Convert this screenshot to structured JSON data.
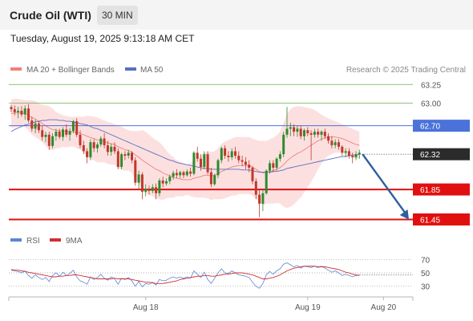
{
  "header": {
    "title": "Crude Oil (WTI)",
    "timeframe": "30 MIN"
  },
  "datetime": "Tuesday, August 19, 2025 9:13:18 AM CET",
  "legend": {
    "bb_label": "MA 20 + Bollinger Bands",
    "ma50_label": "MA 50",
    "credit": "Research © 2025 Trading Central",
    "rsi_label": "RSI",
    "rsi_ma_label": "9MA"
  },
  "colors": {
    "up": "#2e8b2e",
    "down": "#c0392b",
    "bb_fill": "#fbd6d6",
    "ma20": "#f08080",
    "ma50": "#5b6fbf",
    "green_level": "#6ab04c",
    "blue_level": "#4a72d9",
    "red_level": "#e01010",
    "current": "#2b2b2b",
    "arrow": "#2f5e9e",
    "rsi": "#5b86d6",
    "rsi_ma": "#d03030"
  },
  "chart_data": {
    "type": "candlestick",
    "instrument": "Crude Oil (WTI)",
    "timeframe": "30 MIN",
    "ylim": [
      61.38,
      63.36
    ],
    "x_labels": [
      {
        "label": "Aug 18",
        "index": 39
      },
      {
        "label": "Aug 19",
        "index": 86
      },
      {
        "label": "Aug 20",
        "index": 108
      }
    ],
    "levels": [
      {
        "value": 63.25,
        "label": "63.25",
        "style": "green-line"
      },
      {
        "value": 63.0,
        "label": "63.00",
        "style": "green-line"
      },
      {
        "value": 62.7,
        "label": "62.70",
        "style": "blue-tag"
      },
      {
        "value": 62.32,
        "label": "62.32",
        "style": "current-tag"
      },
      {
        "value": 61.85,
        "label": "61.85",
        "style": "red-tag"
      },
      {
        "value": 61.45,
        "label": "61.45",
        "style": "red-tag"
      }
    ],
    "candles": [
      [
        62.95,
        62.98,
        62.88,
        62.92
      ],
      [
        62.92,
        62.97,
        62.84,
        62.88
      ],
      [
        62.88,
        62.95,
        62.8,
        62.9
      ],
      [
        62.9,
        62.96,
        62.82,
        62.85
      ],
      [
        62.85,
        62.97,
        62.78,
        62.93
      ],
      [
        62.93,
        62.99,
        62.74,
        62.77
      ],
      [
        62.77,
        62.82,
        62.62,
        62.66
      ],
      [
        62.66,
        62.78,
        62.6,
        62.73
      ],
      [
        62.73,
        62.76,
        62.6,
        62.64
      ],
      [
        62.64,
        62.7,
        62.5,
        62.55
      ],
      [
        62.55,
        62.62,
        62.48,
        62.58
      ],
      [
        62.58,
        62.62,
        62.38,
        62.43
      ],
      [
        62.43,
        62.6,
        62.4,
        62.56
      ],
      [
        62.56,
        62.66,
        62.5,
        62.62
      ],
      [
        62.62,
        62.66,
        62.52,
        62.55
      ],
      [
        62.55,
        62.68,
        62.5,
        62.65
      ],
      [
        62.65,
        62.72,
        62.55,
        62.58
      ],
      [
        62.58,
        62.67,
        62.5,
        62.63
      ],
      [
        62.63,
        62.78,
        62.6,
        62.76
      ],
      [
        62.76,
        62.8,
        62.55,
        62.58
      ],
      [
        62.58,
        62.64,
        62.4,
        62.44
      ],
      [
        62.44,
        62.5,
        62.32,
        62.36
      ],
      [
        62.36,
        62.4,
        62.2,
        62.28
      ],
      [
        62.28,
        62.52,
        62.24,
        62.48
      ],
      [
        62.48,
        62.52,
        62.35,
        62.4
      ],
      [
        62.4,
        62.48,
        62.34,
        62.45
      ],
      [
        62.45,
        62.56,
        62.42,
        62.53
      ],
      [
        62.53,
        62.6,
        62.4,
        62.44
      ],
      [
        62.44,
        62.5,
        62.3,
        62.35
      ],
      [
        62.35,
        62.46,
        62.3,
        62.42
      ],
      [
        62.42,
        62.48,
        62.32,
        62.36
      ],
      [
        62.36,
        62.4,
        62.12,
        62.15
      ],
      [
        62.15,
        62.34,
        62.12,
        62.32
      ],
      [
        62.32,
        62.36,
        62.24,
        62.3
      ],
      [
        62.3,
        62.38,
        62.26,
        62.34
      ],
      [
        62.34,
        62.36,
        62.2,
        62.24
      ],
      [
        62.24,
        62.28,
        61.9,
        61.94
      ],
      [
        61.94,
        62.1,
        61.86,
        62.05
      ],
      [
        62.05,
        62.08,
        61.72,
        61.82
      ],
      [
        61.82,
        61.92,
        61.76,
        61.86
      ],
      [
        61.86,
        61.9,
        61.78,
        61.83
      ],
      [
        61.83,
        61.92,
        61.8,
        61.88
      ],
      [
        61.88,
        61.93,
        61.72,
        61.8
      ],
      [
        61.8,
        62.0,
        61.76,
        61.97
      ],
      [
        61.97,
        62.02,
        61.88,
        61.93
      ],
      [
        61.93,
        62.0,
        61.9,
        61.96
      ],
      [
        61.96,
        62.05,
        61.92,
        62.02
      ],
      [
        62.02,
        62.1,
        61.98,
        62.07
      ],
      [
        62.07,
        62.12,
        62.0,
        62.04
      ],
      [
        62.04,
        62.1,
        62.0,
        62.08
      ],
      [
        62.08,
        62.1,
        62.0,
        62.04
      ],
      [
        62.04,
        62.12,
        62.02,
        62.09
      ],
      [
        62.09,
        62.14,
        62.02,
        62.06
      ],
      [
        62.06,
        62.36,
        62.04,
        62.34
      ],
      [
        62.34,
        62.42,
        62.22,
        62.26
      ],
      [
        62.26,
        62.32,
        62.1,
        62.15
      ],
      [
        62.15,
        62.36,
        62.12,
        62.32
      ],
      [
        62.32,
        62.36,
        62.05,
        62.08
      ],
      [
        62.08,
        62.14,
        61.88,
        61.92
      ],
      [
        61.92,
        62.06,
        61.9,
        62.04
      ],
      [
        62.04,
        62.26,
        62.0,
        62.24
      ],
      [
        62.24,
        62.42,
        62.2,
        62.4
      ],
      [
        62.4,
        62.44,
        62.26,
        62.3
      ],
      [
        62.3,
        62.36,
        62.22,
        62.28
      ],
      [
        62.28,
        62.4,
        62.24,
        62.36
      ],
      [
        62.36,
        62.42,
        62.26,
        62.3
      ],
      [
        62.3,
        62.36,
        62.2,
        62.24
      ],
      [
        62.24,
        62.3,
        62.16,
        62.22
      ],
      [
        62.22,
        62.28,
        62.12,
        62.18
      ],
      [
        62.18,
        62.24,
        62.08,
        62.14
      ],
      [
        62.14,
        62.16,
        61.92,
        61.96
      ],
      [
        61.96,
        62.0,
        61.72,
        61.78
      ],
      [
        61.78,
        61.86,
        61.48,
        61.66
      ],
      [
        61.66,
        61.84,
        61.56,
        61.8
      ],
      [
        61.8,
        62.12,
        61.78,
        62.1
      ],
      [
        62.1,
        62.24,
        62.06,
        62.2
      ],
      [
        62.2,
        62.24,
        62.08,
        62.14
      ],
      [
        62.14,
        62.28,
        62.1,
        62.26
      ],
      [
        62.26,
        62.36,
        62.22,
        62.32
      ],
      [
        62.32,
        62.62,
        62.28,
        62.58
      ],
      [
        62.58,
        62.95,
        62.54,
        62.66
      ],
      [
        62.66,
        62.74,
        62.56,
        62.68
      ],
      [
        62.68,
        62.72,
        62.56,
        62.62
      ],
      [
        62.62,
        62.7,
        62.55,
        62.66
      ],
      [
        62.66,
        62.7,
        62.52,
        62.56
      ],
      [
        62.56,
        62.66,
        62.5,
        62.64
      ],
      [
        62.64,
        62.68,
        62.56,
        62.6
      ],
      [
        62.6,
        62.64,
        62.24,
        62.58
      ],
      [
        62.58,
        62.66,
        62.54,
        62.62
      ],
      [
        62.62,
        62.66,
        62.54,
        62.58
      ],
      [
        62.58,
        62.64,
        62.5,
        62.62
      ],
      [
        62.62,
        62.66,
        62.52,
        62.56
      ],
      [
        62.56,
        62.6,
        62.46,
        62.5
      ],
      [
        62.5,
        62.56,
        62.4,
        62.44
      ],
      [
        62.44,
        62.52,
        62.4,
        62.48
      ],
      [
        62.48,
        62.52,
        62.38,
        62.42
      ],
      [
        62.42,
        62.44,
        62.3,
        62.34
      ],
      [
        62.34,
        62.4,
        62.28,
        62.36
      ],
      [
        62.36,
        62.4,
        62.26,
        62.3
      ],
      [
        62.3,
        62.34,
        62.2,
        62.28
      ],
      [
        62.28,
        62.36,
        62.24,
        62.32
      ],
      [
        62.32,
        62.38,
        62.26,
        62.34
      ]
    ],
    "ma20": [
      62.86,
      62.87,
      62.87,
      62.87,
      62.86,
      62.84,
      62.81,
      62.79,
      62.76,
      62.73,
      62.7,
      62.67,
      62.65,
      62.64,
      62.63,
      62.63,
      62.62,
      62.62,
      62.62,
      62.61,
      62.6,
      62.58,
      62.56,
      62.54,
      62.53,
      62.51,
      62.5,
      62.49,
      62.47,
      62.46,
      62.45,
      62.42,
      62.4,
      62.38,
      62.37,
      62.35,
      62.31,
      62.28,
      62.24,
      62.21,
      62.18,
      62.15,
      62.12,
      62.1,
      62.07,
      62.05,
      62.03,
      62.01,
      62.0,
      61.99,
      61.98,
      61.98,
      61.98,
      62.0,
      62.01,
      62.02,
      62.04,
      62.04,
      62.03,
      62.04,
      62.06,
      62.09,
      62.11,
      62.13,
      62.15,
      62.16,
      62.17,
      62.17,
      62.17,
      62.17,
      62.15,
      62.12,
      62.09,
      62.07,
      62.08,
      62.09,
      62.1,
      62.12,
      62.14,
      62.18,
      62.23,
      62.27,
      62.3,
      62.33,
      62.35,
      62.38,
      62.41,
      62.44,
      62.47,
      62.5,
      62.52,
      62.54,
      62.55,
      62.55,
      62.55,
      62.54,
      62.53,
      62.51,
      62.49,
      62.47,
      62.45,
      62.44
    ],
    "bb_upper": [
      63.05,
      63.06,
      63.06,
      63.05,
      63.04,
      63.04,
      63.04,
      63.03,
      63.0,
      62.98,
      62.97,
      62.96,
      62.93,
      62.88,
      62.86,
      62.84,
      62.83,
      62.82,
      62.82,
      62.82,
      62.82,
      62.82,
      62.83,
      62.83,
      62.82,
      62.81,
      62.79,
      62.77,
      62.75,
      62.74,
      62.72,
      62.7,
      62.69,
      62.66,
      62.64,
      62.63,
      62.63,
      62.63,
      62.64,
      62.62,
      62.58,
      62.54,
      62.51,
      62.48,
      62.43,
      62.37,
      62.32,
      62.28,
      62.24,
      62.22,
      62.2,
      62.18,
      62.2,
      62.25,
      62.28,
      62.3,
      62.34,
      62.35,
      62.35,
      62.36,
      62.4,
      62.46,
      62.49,
      62.51,
      62.53,
      62.55,
      62.55,
      62.55,
      62.55,
      62.55,
      62.53,
      62.51,
      62.5,
      62.5,
      62.5,
      62.52,
      62.54,
      62.57,
      62.62,
      62.74,
      62.86,
      62.92,
      62.95,
      62.96,
      62.96,
      62.95,
      62.94,
      62.93,
      62.91,
      62.88,
      62.85,
      62.82,
      62.8,
      62.78,
      62.76,
      62.74,
      62.72,
      62.7,
      62.68,
      62.66,
      62.64,
      62.62
    ],
    "bb_lower": [
      62.67,
      62.68,
      62.68,
      62.69,
      62.68,
      62.64,
      62.58,
      62.55,
      62.52,
      62.48,
      62.43,
      62.38,
      62.37,
      62.4,
      62.4,
      62.42,
      62.41,
      62.42,
      62.42,
      62.4,
      62.38,
      62.34,
      62.29,
      62.25,
      62.24,
      62.21,
      62.21,
      62.21,
      62.19,
      62.18,
      62.18,
      62.14,
      62.11,
      62.1,
      62.1,
      62.07,
      61.99,
      61.93,
      61.84,
      61.8,
      61.78,
      61.76,
      61.73,
      61.72,
      61.71,
      61.73,
      61.74,
      61.74,
      61.76,
      61.76,
      61.76,
      61.78,
      61.76,
      61.75,
      61.74,
      61.74,
      61.74,
      61.73,
      61.71,
      61.72,
      61.72,
      61.72,
      61.73,
      61.75,
      61.77,
      61.77,
      61.79,
      61.79,
      61.79,
      61.79,
      61.77,
      61.73,
      61.68,
      61.64,
      61.66,
      61.66,
      61.66,
      61.67,
      61.66,
      61.62,
      61.6,
      61.62,
      61.65,
      61.7,
      61.74,
      61.81,
      61.88,
      61.95,
      62.03,
      62.12,
      62.19,
      62.26,
      62.3,
      62.32,
      62.34,
      62.34,
      62.34,
      62.32,
      62.3,
      62.28,
      62.26,
      62.26
    ],
    "ma50": [
      62.62,
      62.65,
      62.67,
      62.69,
      62.71,
      62.72,
      62.74,
      62.75,
      62.76,
      62.77,
      62.77,
      62.78,
      62.78,
      62.78,
      62.77,
      62.77,
      62.76,
      62.76,
      62.75,
      62.74,
      62.73,
      62.72,
      62.71,
      62.69,
      62.67,
      62.66,
      62.64,
      62.62,
      62.6,
      62.58,
      62.56,
      62.54,
      62.52,
      62.5,
      62.48,
      62.46,
      62.44,
      62.42,
      62.4,
      62.38,
      62.36,
      62.34,
      62.32,
      62.3,
      62.28,
      62.26,
      62.24,
      62.23,
      62.21,
      62.2,
      62.19,
      62.18,
      62.17,
      62.16,
      62.15,
      62.14,
      62.13,
      62.13,
      62.12,
      62.12,
      62.12,
      62.12,
      62.12,
      62.12,
      62.12,
      62.12,
      62.12,
      62.11,
      62.11,
      62.11,
      62.1,
      62.09,
      62.08,
      62.08,
      62.08,
      62.08,
      62.09,
      62.09,
      62.1,
      62.11,
      62.13,
      62.14,
      62.15,
      62.16,
      62.17,
      62.18,
      62.19,
      62.2,
      62.21,
      62.22,
      62.23,
      62.24,
      62.25,
      62.26,
      62.27,
      62.28,
      62.29,
      62.29,
      62.3,
      62.31,
      62.31,
      62.32
    ],
    "projection": {
      "from": 62.32,
      "to": 61.45
    },
    "rsi": {
      "levels": [
        70,
        50,
        30
      ],
      "ylim": [
        20,
        80
      ],
      "values": [
        54,
        53,
        52,
        50,
        53,
        46,
        42,
        47,
        43,
        40,
        43,
        37,
        46,
        50,
        45,
        51,
        46,
        49,
        54,
        44,
        38,
        36,
        33,
        44,
        40,
        43,
        48,
        42,
        39,
        44,
        41,
        33,
        42,
        40,
        43,
        38,
        30,
        37,
        29,
        34,
        33,
        36,
        32,
        40,
        38,
        39,
        42,
        44,
        42,
        44,
        42,
        44,
        42,
        53,
        48,
        43,
        51,
        40,
        34,
        42,
        50,
        56,
        50,
        49,
        53,
        50,
        47,
        46,
        45,
        43,
        36,
        30,
        27,
        34,
        47,
        52,
        48,
        53,
        56,
        63,
        65,
        62,
        59,
        61,
        57,
        60,
        59,
        58,
        60,
        58,
        60,
        57,
        54,
        51,
        53,
        50,
        46,
        48,
        46,
        44,
        46,
        47
      ],
      "ma9": [
        55,
        54,
        54,
        53,
        52,
        51,
        50,
        49,
        48,
        47,
        46,
        45,
        44,
        44,
        45,
        45,
        46,
        46,
        47,
        47,
        46,
        45,
        44,
        43,
        42,
        41,
        41,
        41,
        41,
        41,
        42,
        41,
        41,
        41,
        41,
        40,
        39,
        38,
        37,
        36,
        36,
        35,
        34,
        34,
        34,
        35,
        36,
        37,
        38,
        40,
        41,
        42,
        43,
        44,
        45,
        45,
        46,
        46,
        45,
        45,
        46,
        47,
        48,
        48,
        49,
        50,
        50,
        50,
        49,
        48,
        47,
        45,
        43,
        41,
        41,
        42,
        43,
        45,
        47,
        50,
        53,
        55,
        57,
        58,
        59,
        60,
        60,
        60,
        60,
        59,
        59,
        59,
        58,
        57,
        56,
        55,
        53,
        51,
        50,
        48,
        47,
        46
      ]
    }
  }
}
